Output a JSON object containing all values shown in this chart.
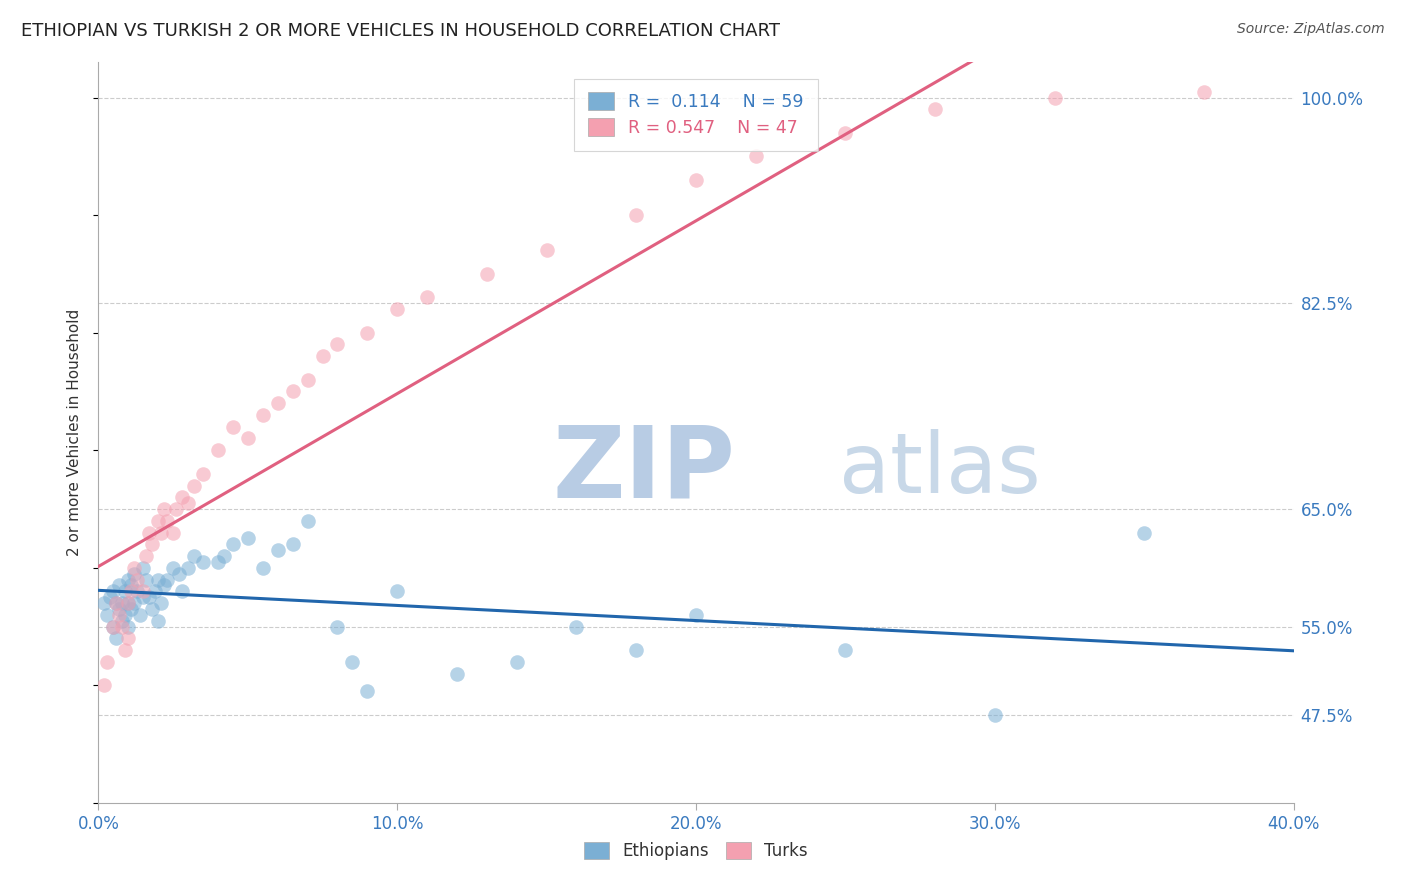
{
  "title": "ETHIOPIAN VS TURKISH 2 OR MORE VEHICLES IN HOUSEHOLD CORRELATION CHART",
  "source": "Source: ZipAtlas.com",
  "ylabel": "2 or more Vehicles in Household",
  "xmin": 0.0,
  "xmax": 40.0,
  "ymin": 40.0,
  "ymax": 103.0,
  "xtick_values": [
    0.0,
    10.0,
    20.0,
    30.0,
    40.0
  ],
  "ytick_values": [
    47.5,
    55.0,
    65.0,
    82.5,
    100.0
  ],
  "r_ethiopians": 0.114,
  "n_ethiopians": 59,
  "r_turks": 0.547,
  "n_turks": 47,
  "color_ethiopians": "#7bafd4",
  "color_turks": "#f4a0b0",
  "color_line_ethiopians": "#2166ac",
  "color_line_turks": "#e06080",
  "watermark_zip": "ZIP",
  "watermark_atlas": "atlas",
  "watermark_color_zip": "#b8cce4",
  "watermark_color_atlas": "#c8d8e8",
  "ethiopians_x": [
    0.2,
    0.3,
    0.4,
    0.5,
    0.5,
    0.6,
    0.6,
    0.7,
    0.7,
    0.8,
    0.8,
    0.9,
    0.9,
    1.0,
    1.0,
    1.0,
    1.1,
    1.1,
    1.2,
    1.2,
    1.3,
    1.4,
    1.5,
    1.5,
    1.6,
    1.7,
    1.8,
    1.9,
    2.0,
    2.0,
    2.1,
    2.2,
    2.3,
    2.5,
    2.7,
    2.8,
    3.0,
    3.2,
    3.5,
    4.0,
    4.2,
    4.5,
    5.0,
    5.5,
    6.0,
    6.5,
    7.0,
    8.0,
    8.5,
    9.0,
    10.0,
    12.0,
    14.0,
    16.0,
    18.0,
    20.0,
    25.0,
    30.0,
    35.0
  ],
  "ethiopians_y": [
    57.0,
    56.0,
    57.5,
    55.0,
    58.0,
    54.0,
    57.0,
    56.5,
    58.5,
    55.5,
    57.0,
    56.0,
    58.0,
    55.0,
    57.0,
    59.0,
    56.5,
    58.5,
    57.0,
    59.5,
    58.0,
    56.0,
    57.5,
    60.0,
    59.0,
    57.5,
    56.5,
    58.0,
    55.5,
    59.0,
    57.0,
    58.5,
    59.0,
    60.0,
    59.5,
    58.0,
    60.0,
    61.0,
    60.5,
    60.5,
    61.0,
    62.0,
    62.5,
    60.0,
    61.5,
    62.0,
    64.0,
    55.0,
    52.0,
    49.5,
    58.0,
    51.0,
    52.0,
    55.0,
    53.0,
    56.0,
    53.0,
    47.5,
    63.0
  ],
  "turks_x": [
    0.2,
    0.3,
    0.5,
    0.6,
    0.7,
    0.8,
    0.9,
    1.0,
    1.0,
    1.1,
    1.2,
    1.3,
    1.5,
    1.6,
    1.7,
    1.8,
    2.0,
    2.1,
    2.2,
    2.3,
    2.5,
    2.6,
    2.8,
    3.0,
    3.2,
    3.5,
    4.0,
    4.5,
    5.0,
    5.5,
    6.0,
    6.5,
    7.0,
    7.5,
    8.0,
    9.0,
    10.0,
    11.0,
    13.0,
    15.0,
    18.0,
    20.0,
    22.0,
    25.0,
    28.0,
    32.0,
    37.0
  ],
  "turks_y": [
    50.0,
    52.0,
    55.0,
    57.0,
    56.0,
    55.0,
    53.0,
    57.0,
    54.0,
    58.0,
    60.0,
    59.0,
    58.0,
    61.0,
    63.0,
    62.0,
    64.0,
    63.0,
    65.0,
    64.0,
    63.0,
    65.0,
    66.0,
    65.5,
    67.0,
    68.0,
    70.0,
    72.0,
    71.0,
    73.0,
    74.0,
    75.0,
    76.0,
    78.0,
    79.0,
    80.0,
    82.0,
    83.0,
    85.0,
    87.0,
    90.0,
    93.0,
    95.0,
    97.0,
    99.0,
    100.0,
    100.5
  ]
}
